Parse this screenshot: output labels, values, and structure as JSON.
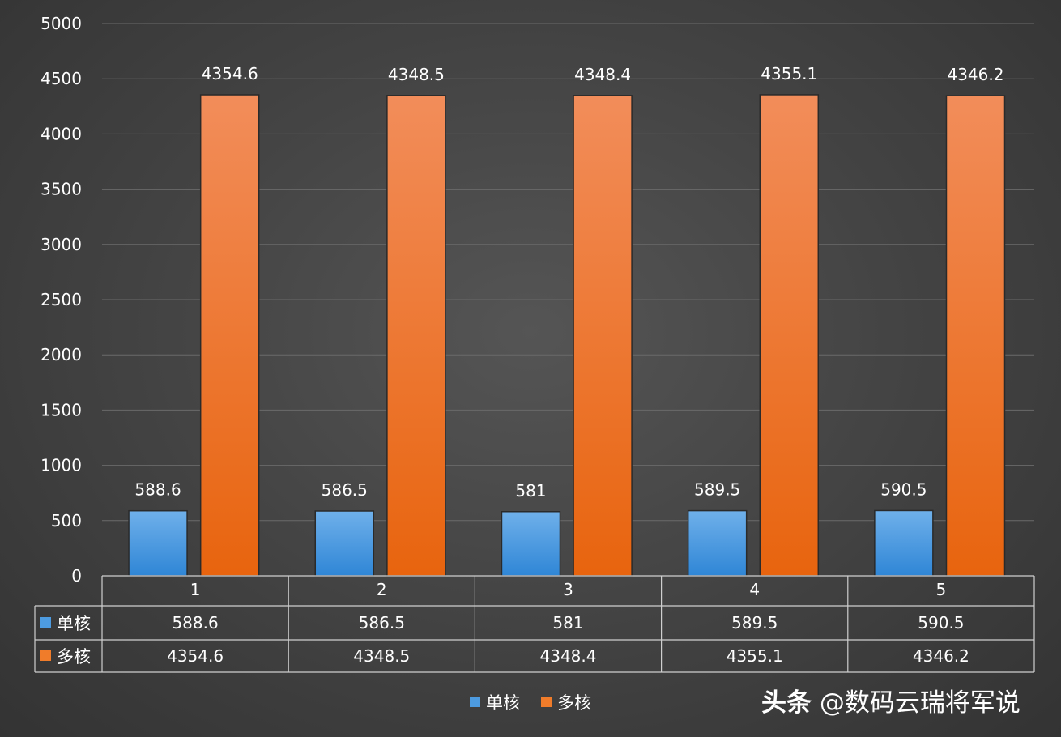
{
  "chart_data": {
    "type": "bar",
    "categories": [
      "1",
      "2",
      "3",
      "4",
      "5"
    ],
    "series": [
      {
        "name": "单核",
        "values": [
          588.6,
          586.5,
          581,
          589.5,
          590.5
        ],
        "labels": [
          "588.6",
          "586.5",
          "581",
          "589.5",
          "590.5"
        ],
        "color": "#4d9be0"
      },
      {
        "name": "多核",
        "values": [
          4354.6,
          4348.5,
          4348.4,
          4355.1,
          4346.2
        ],
        "labels": [
          "4354.6",
          "4348.5",
          "4348.4",
          "4355.1",
          "4346.2"
        ],
        "color": "#f07c2a"
      }
    ],
    "ylim": [
      0,
      5000
    ],
    "yticks": [
      "0",
      "500",
      "1000",
      "1500",
      "2000",
      "2500",
      "3000",
      "3500",
      "4000",
      "4500",
      "5000"
    ],
    "grid": true,
    "data_table": true,
    "legend_position": "bottom"
  },
  "watermark": {
    "brand": "头条",
    "account": "@数码云瑞将军说"
  }
}
